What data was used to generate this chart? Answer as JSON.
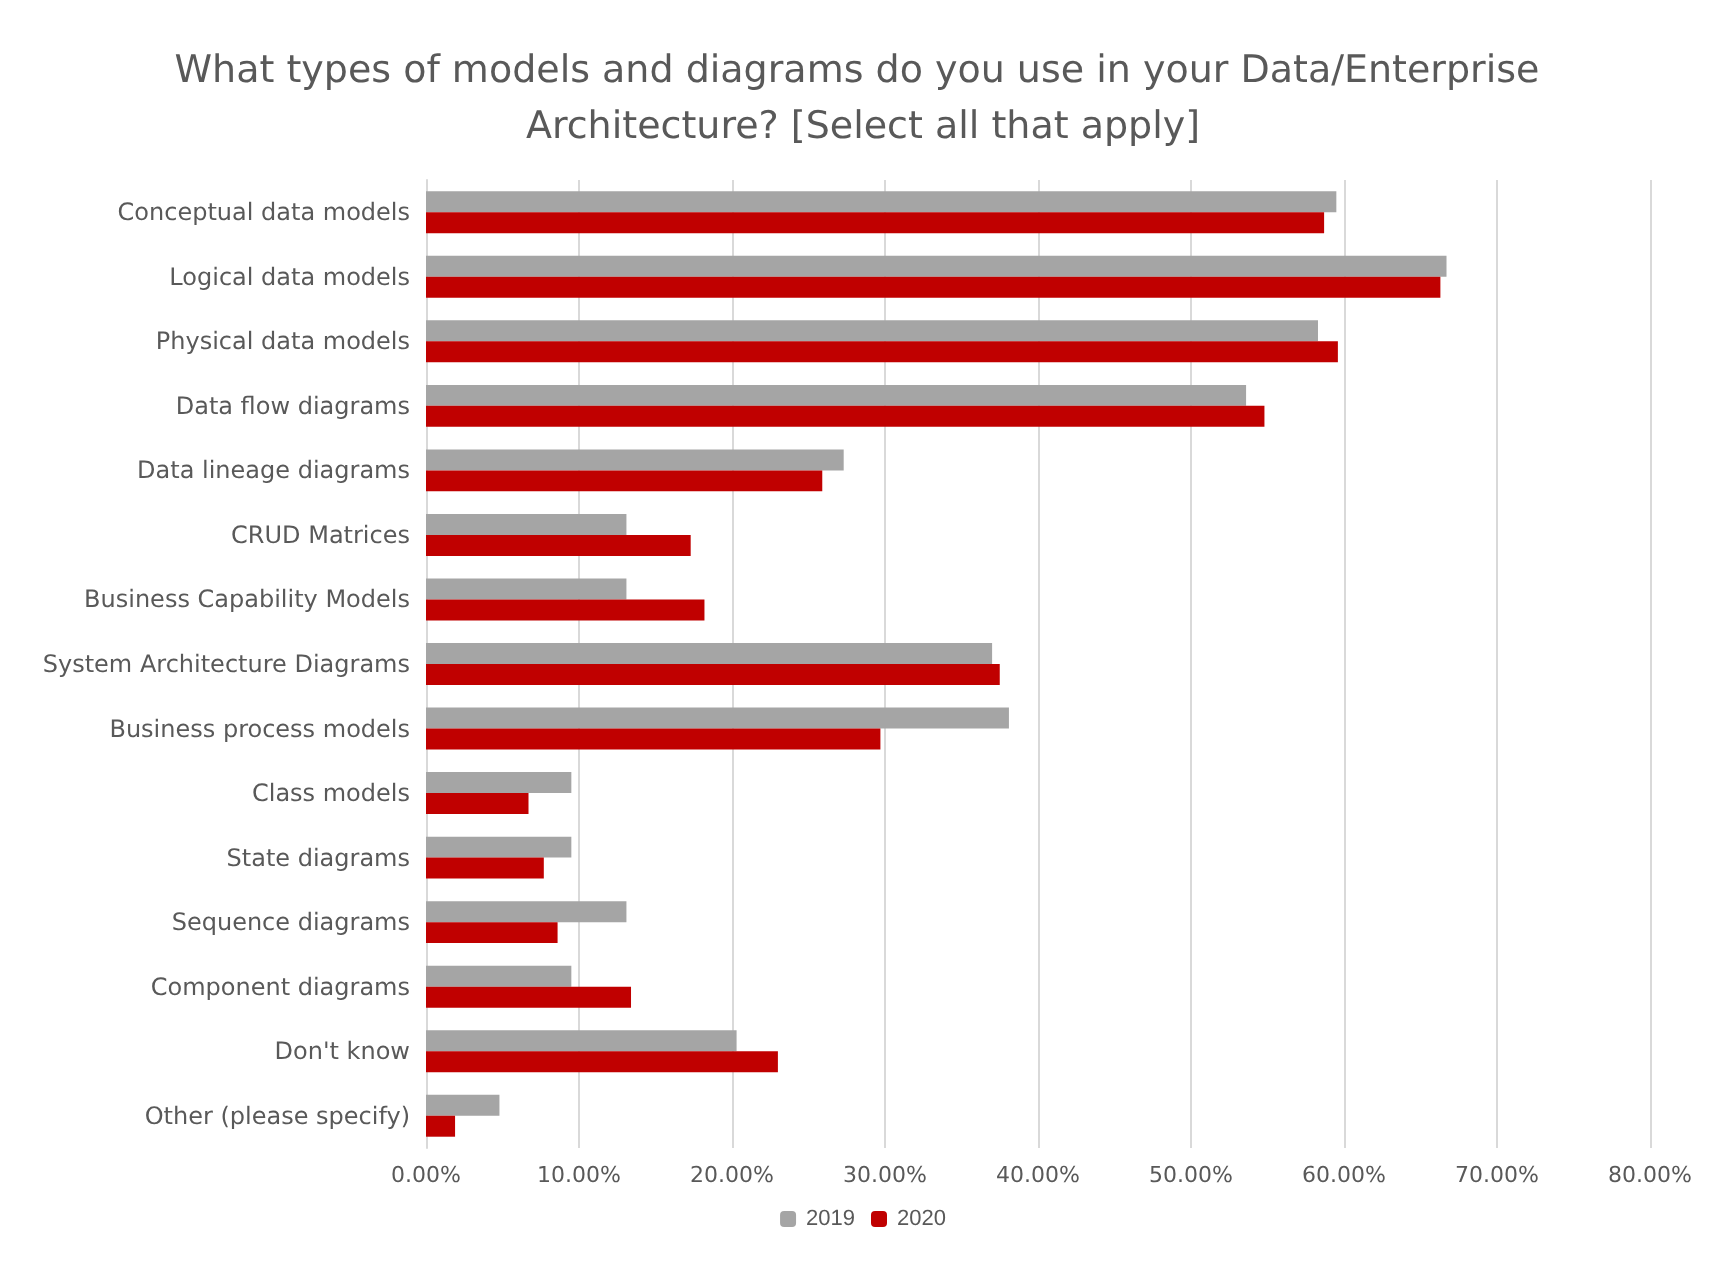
{
  "chart_data": {
    "type": "bar",
    "orientation": "horizontal",
    "title": "What types of models and diagrams do you use in your Data/Enterprise Architecture? [Select all that apply]",
    "categories": [
      "Conceptual data models",
      "Logical data models",
      "Physical data models",
      "Data flow diagrams",
      "Data lineage diagrams",
      "CRUD Matrices",
      "Business Capability Models",
      "System Architecture Diagrams",
      "Business process models",
      "Class models",
      "State diagrams",
      "Sequence diagrams",
      "Component diagrams",
      "Don't know",
      "Other (please specify)"
    ],
    "series": [
      {
        "name": "2019",
        "color": "#a5a5a5",
        "values": [
          59.5,
          66.7,
          58.3,
          53.6,
          27.3,
          13.1,
          13.1,
          37.0,
          38.1,
          9.5,
          9.5,
          13.1,
          9.5,
          20.3,
          4.8
        ]
      },
      {
        "name": "2020",
        "color": "#c00000",
        "values": [
          58.7,
          66.3,
          59.6,
          54.8,
          25.9,
          17.3,
          18.2,
          37.5,
          29.7,
          6.7,
          7.7,
          8.6,
          13.4,
          23.0,
          1.9
        ]
      }
    ],
    "xlim": [
      0,
      80
    ],
    "xticks": [
      {
        "value": 0,
        "label": "0.00%"
      },
      {
        "value": 10,
        "label": "10.00%"
      },
      {
        "value": 20,
        "label": "20.00%"
      },
      {
        "value": 30,
        "label": "30.00%"
      },
      {
        "value": 40,
        "label": "40.00%"
      },
      {
        "value": 50,
        "label": "50.00%"
      },
      {
        "value": 60,
        "label": "60.00%"
      },
      {
        "value": 70,
        "label": "70.00%"
      },
      {
        "value": 80,
        "label": "80.00%"
      }
    ],
    "grid": "x",
    "legend": "bottom"
  }
}
